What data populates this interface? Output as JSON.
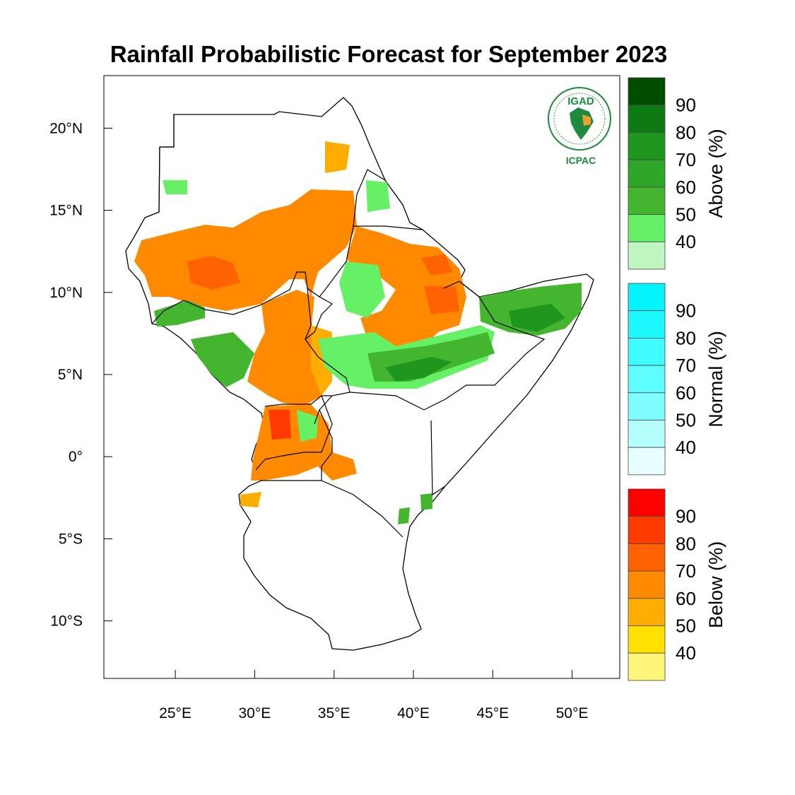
{
  "title": "Rainfall Probabilistic Forecast for September 2023",
  "logo": {
    "top_text": "IGAD",
    "bottom_text": "ICPAC",
    "color": "#1e8a3c",
    "accent": "#f0a030"
  },
  "axes": {
    "x_ticks": [
      {
        "lon": 25,
        "label": "25°E"
      },
      {
        "lon": 30,
        "label": "30°E"
      },
      {
        "lon": 35,
        "label": "35°E"
      },
      {
        "lon": 40,
        "label": "40°E"
      },
      {
        "lon": 45,
        "label": "45°E"
      },
      {
        "lon": 50,
        "label": "50°E"
      }
    ],
    "y_ticks": [
      {
        "lat": 20,
        "label": "20°N"
      },
      {
        "lat": 15,
        "label": "15°N"
      },
      {
        "lat": 10,
        "label": "10°N"
      },
      {
        "lat": 5,
        "label": "5°N"
      },
      {
        "lat": 0,
        "label": "0°"
      },
      {
        "lat": -5,
        "label": "5°S"
      },
      {
        "lat": -10,
        "label": "10°S"
      }
    ],
    "lon_range": [
      20.5,
      53.0
    ],
    "lat_range": [
      -13.5,
      23.2
    ]
  },
  "colorbars": [
    {
      "title": "Above (%)",
      "labels": [
        "90",
        "80",
        "70",
        "60",
        "50",
        "40"
      ],
      "colors": [
        "#004d00",
        "#0d7a14",
        "#1f961e",
        "#2ea62a",
        "#43b52e",
        "#66f066",
        "#bff5bf"
      ]
    },
    {
      "title": "Normal (%)",
      "labels": [
        "90",
        "80",
        "70",
        "60",
        "50",
        "40"
      ],
      "colors": [
        "#00f5ff",
        "#1ef8ff",
        "#3dfbff",
        "#5cfcff",
        "#80fdff",
        "#b5feff",
        "#e8ffff"
      ]
    },
    {
      "title": "Below (%)",
      "labels": [
        "90",
        "80",
        "70",
        "60",
        "50",
        "40"
      ],
      "colors": [
        "#ff0000",
        "#ff3a00",
        "#ff6200",
        "#ff8a00",
        "#ffad00",
        "#ffe000",
        "#fff57a"
      ]
    }
  ],
  "colors": {
    "below_low": "#ffad00",
    "below_mid": "#ff8a00",
    "below_high": "#ff6200",
    "below_max": "#ff3a00",
    "above_low": "#66f066",
    "above_mid": "#43b52e",
    "above_high": "#1f961e",
    "above_max": "#0d7a14"
  }
}
